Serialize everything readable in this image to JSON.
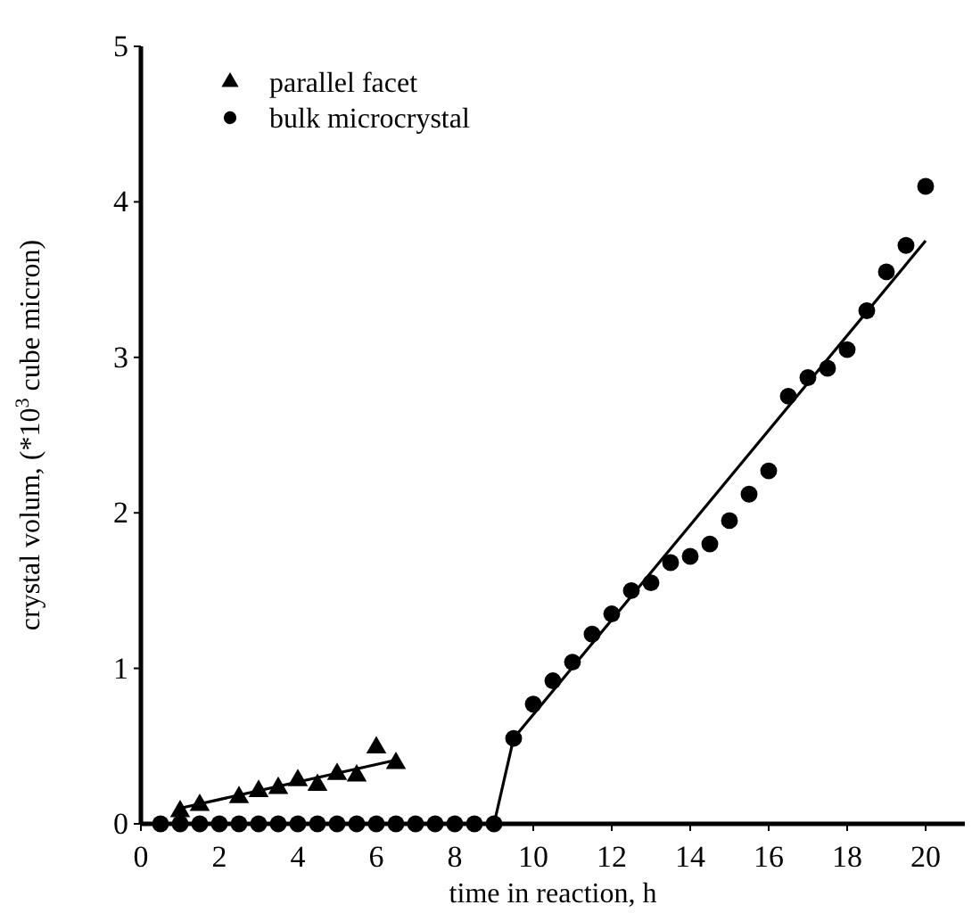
{
  "chart_data": {
    "type": "scatter",
    "xlabel": "time in reaction, h",
    "ylabel": "crystal volum, (*10$^{3}$ cube micron)",
    "xlim": [
      0,
      21
    ],
    "ylim": [
      0,
      5
    ],
    "xticks": [
      0,
      2,
      4,
      6,
      8,
      10,
      12,
      14,
      16,
      18,
      20
    ],
    "yticks": [
      0,
      1,
      2,
      3,
      4,
      5
    ],
    "legend": "top left",
    "grid": false,
    "series": [
      {
        "name": "parallel facet",
        "color": "#000000",
        "marker": "triangle",
        "x": [
          1,
          1.5,
          2.5,
          3,
          3.5,
          4,
          4.5,
          5,
          5.5,
          6,
          6.5
        ],
        "values": [
          0.08,
          0.12,
          0.17,
          0.21,
          0.23,
          0.28,
          0.25,
          0.32,
          0.31,
          0.49,
          0.39
        ]
      },
      {
        "name": "bulk microcrystal",
        "color": "#000000",
        "marker": "circle",
        "x": [
          0.5,
          1,
          1.5,
          2,
          2.5,
          3,
          3.5,
          4,
          4.5,
          5,
          5.5,
          6,
          6.5,
          7,
          7.5,
          8,
          8.5,
          9,
          9.5,
          10,
          10.5,
          11,
          11.5,
          12,
          12.5,
          13,
          13.5,
          14,
          14.5,
          15,
          15.5,
          16,
          16.5,
          17,
          17.5,
          18,
          18.5,
          19,
          19.5,
          20
        ],
        "values": [
          0,
          0,
          0,
          0,
          0,
          0,
          0,
          0,
          0,
          0,
          0,
          0,
          0,
          0,
          0,
          0,
          0,
          0,
          0.55,
          0.77,
          0.92,
          1.04,
          1.22,
          1.35,
          1.5,
          1.55,
          1.68,
          1.72,
          1.8,
          1.95,
          2.12,
          2.27,
          2.75,
          2.87,
          2.93,
          3.05,
          3.3,
          3.55,
          3.72,
          4.1
        ]
      },
      {
        "type": "line",
        "color": "#000000",
        "marker": "none",
        "x": [
          1,
          6.5
        ],
        "values": [
          0.1,
          0.41
        ]
      },
      {
        "type": "line",
        "color": "#000000",
        "marker": "none",
        "x": [
          0,
          9,
          9.5,
          20
        ],
        "values": [
          0,
          0,
          0.55,
          3.75
        ]
      }
    ]
  }
}
